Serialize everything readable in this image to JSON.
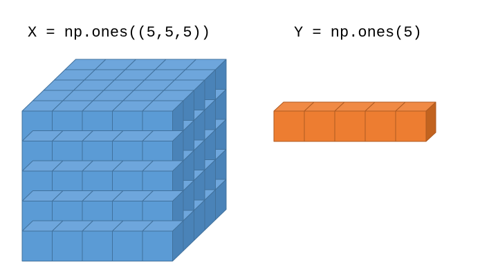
{
  "labels": {
    "x_array": "X = np.ones((5,5,5))",
    "y_array": "Y = np.ones(5)"
  },
  "cube_x": {
    "shape": [
      5,
      5,
      5
    ],
    "colors": {
      "front": "#5b9bd5",
      "top": "#6ea6dc",
      "side": "#4a83b8",
      "edge": "#41719c"
    }
  },
  "cube_y": {
    "shape": [
      5
    ],
    "colors": {
      "front": "#ed7d31",
      "top": "#f08a45",
      "side": "#c2631f",
      "edge": "#ae5a21"
    }
  }
}
